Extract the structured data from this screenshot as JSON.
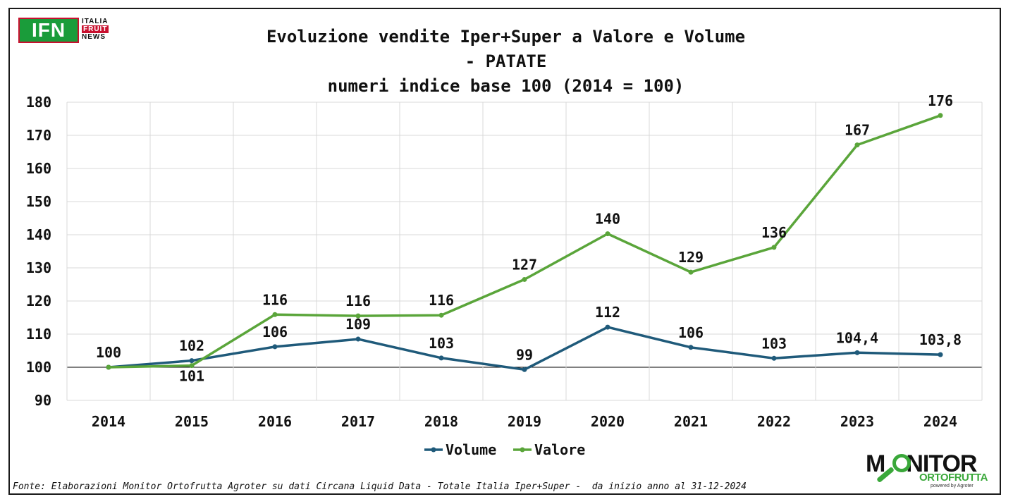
{
  "logos": {
    "ifn": {
      "mark": "IFN",
      "line1": "ITALIA",
      "line2": "FRUIT",
      "line3": "NEWS"
    },
    "monitor": {
      "line1": "M",
      "line1b": "NITOR",
      "line2": "ORTOFRUTTA",
      "line3": "powered by Agroter"
    }
  },
  "title": {
    "line1": "Evoluzione vendite Iper+Super a Valore e Volume",
    "line2": "- PATATE",
    "line3": "numeri indice base 100 (2014 = 100)"
  },
  "source": "Fonte: Elaborazioni Monitor Ortofrutta Agroter su dati Circana Liquid Data - Totale Italia Iper+Super -  da inizio anno al 31-12-2024",
  "colors": {
    "volume": "#1f5a7a",
    "valore": "#5aa53a",
    "grid": "#d9d9d9",
    "axis": "#000000"
  },
  "chart_data": {
    "type": "line",
    "categories": [
      "2014",
      "2015",
      "2016",
      "2017",
      "2018",
      "2019",
      "2020",
      "2021",
      "2022",
      "2023",
      "2024"
    ],
    "ylim": [
      90,
      180
    ],
    "yticks": [
      90,
      100,
      110,
      120,
      130,
      140,
      150,
      160,
      170,
      180
    ],
    "grid": true,
    "legend_position": "bottom",
    "series": [
      {
        "name": "Volume",
        "values": [
          100,
          102,
          106.2,
          108.5,
          102.8,
          99.3,
          112.1,
          106,
          102.7,
          104.4,
          103.8
        ],
        "labels": [
          "",
          "102",
          "106",
          "109",
          "103",
          "99",
          "112",
          "106",
          "103",
          "104,4",
          "103,8"
        ]
      },
      {
        "name": "Valore",
        "values": [
          100,
          100.5,
          115.9,
          115.5,
          115.7,
          126.5,
          140.3,
          128.7,
          136.2,
          167.1,
          176
        ],
        "labels": [
          "100",
          "101",
          "116",
          "116",
          "116",
          "127",
          "140",
          "129",
          "136",
          "167",
          "176"
        ]
      }
    ]
  }
}
